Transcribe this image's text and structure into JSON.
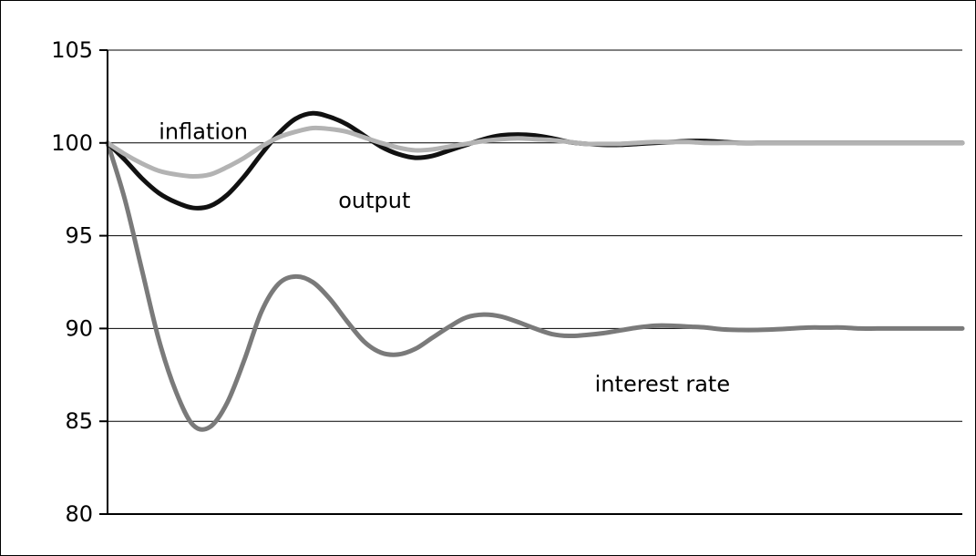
{
  "chart_data": {
    "type": "line",
    "title": "",
    "xlabel": "",
    "ylabel": "",
    "ylim": [
      80,
      105
    ],
    "y_ticks": [
      80,
      85,
      90,
      95,
      100,
      105
    ],
    "y_tick_labels": [
      "80",
      "85",
      "90",
      "95",
      "100",
      "105"
    ],
    "grid": "horizontal",
    "legend": "none",
    "x": [
      0,
      1,
      2,
      3,
      4,
      5,
      6,
      7,
      8,
      9,
      10,
      11,
      12,
      13,
      14,
      15,
      16,
      17,
      18,
      19,
      20,
      21,
      22,
      23,
      24,
      25,
      26,
      27,
      28,
      29,
      30,
      31,
      32,
      33,
      34,
      35,
      36,
      37,
      38,
      39,
      40,
      41,
      42,
      43,
      44,
      45,
      46,
      47,
      48,
      49,
      50
    ],
    "xlim": [
      0,
      50
    ],
    "series": [
      {
        "name": "output",
        "color": "#111111",
        "values": [
          100,
          99.1,
          98.1,
          97.3,
          96.8,
          96.5,
          96.6,
          97.2,
          98.2,
          99.4,
          100.5,
          101.3,
          101.6,
          101.4,
          101.0,
          100.4,
          99.8,
          99.4,
          99.2,
          99.3,
          99.6,
          99.9,
          100.2,
          100.4,
          100.45,
          100.4,
          100.25,
          100.05,
          99.95,
          99.9,
          99.9,
          99.95,
          100.0,
          100.05,
          100.1,
          100.1,
          100.05,
          100.0,
          100.0,
          100.0,
          100.0,
          100.0,
          100.0,
          100.0,
          100.0,
          100.0,
          100.0,
          100.0,
          100.0,
          100.0,
          100.0
        ]
      },
      {
        "name": "inflation",
        "color": "#b3b3b3",
        "values": [
          100,
          99.4,
          98.9,
          98.5,
          98.3,
          98.2,
          98.3,
          98.7,
          99.2,
          99.8,
          100.3,
          100.6,
          100.8,
          100.75,
          100.6,
          100.3,
          100.0,
          99.75,
          99.6,
          99.65,
          99.8,
          99.95,
          100.1,
          100.2,
          100.25,
          100.2,
          100.15,
          100.05,
          99.95,
          99.95,
          99.95,
          100.0,
          100.05,
          100.05,
          100.05,
          100.0,
          100.0,
          100.0,
          100.0,
          100.0,
          100.0,
          100.0,
          100.0,
          100.0,
          100.0,
          100.0,
          100.0,
          100.0,
          100.0,
          100.0,
          100.0
        ]
      },
      {
        "name": "interest rate",
        "color": "#7a7a7a",
        "values": [
          100,
          97.0,
          93.2,
          89.4,
          86.6,
          84.8,
          84.7,
          86.0,
          88.3,
          90.9,
          92.4,
          92.8,
          92.5,
          91.6,
          90.4,
          89.3,
          88.7,
          88.6,
          88.9,
          89.5,
          90.1,
          90.6,
          90.75,
          90.65,
          90.35,
          90.0,
          89.7,
          89.6,
          89.65,
          89.75,
          89.9,
          90.05,
          90.15,
          90.15,
          90.1,
          90.05,
          89.95,
          89.92,
          89.92,
          89.95,
          90.0,
          90.05,
          90.05,
          90.05,
          90.0,
          90.0,
          90.0,
          90.0,
          90.0,
          90.0,
          90.0
        ]
      }
    ],
    "annotations": [
      {
        "text": "inflation",
        "x": 3.0,
        "y": 100.2
      },
      {
        "text": "output",
        "x": 13.5,
        "y": 96.5
      },
      {
        "text": "interest rate",
        "x": 28.5,
        "y": 86.6
      }
    ]
  }
}
